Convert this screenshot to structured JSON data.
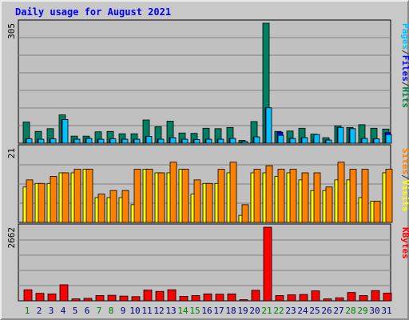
{
  "chart_data": {
    "type": "bar",
    "title": "Daily usage for August 2021",
    "categories": [
      "1",
      "2",
      "3",
      "4",
      "5",
      "6",
      "7",
      "8",
      "9",
      "10",
      "11",
      "12",
      "13",
      "14",
      "15",
      "16",
      "17",
      "18",
      "19",
      "20",
      "21",
      "22",
      "23",
      "24",
      "25",
      "26",
      "27",
      "28",
      "29",
      "30",
      "31"
    ],
    "weekend_days": [
      "1",
      "7",
      "8",
      "14",
      "15",
      "21",
      "22",
      "28",
      "29"
    ],
    "panels": [
      {
        "name": "hits-files-pages",
        "ymax_label": "305",
        "ylim": [
          0,
          305
        ],
        "legend": [
          {
            "text": "Pages",
            "color": "#00c0ff"
          },
          {
            "text": "/",
            "color": "#303030"
          },
          {
            "text": "Files",
            "color": "#0000ff"
          },
          {
            "text": "/",
            "color": "#303030"
          },
          {
            "text": "Hits",
            "color": "#008040"
          }
        ],
        "series": [
          {
            "name": "Hits",
            "color": "#008060",
            "values": [
              54,
              30,
              37,
              72,
              18,
              18,
              29,
              30,
              24,
              24,
              59,
              42,
              56,
              26,
              25,
              38,
              37,
              40,
              7,
              55,
              305,
              30,
              31,
              38,
              23,
              14,
              44,
              40,
              47,
              38,
              36
            ]
          },
          {
            "name": "Files",
            "color": "#0000ff",
            "values": [
              11,
              10,
              11,
              60,
              10,
              12,
              10,
              11,
              10,
              10,
              17,
              10,
              14,
              10,
              9,
              10,
              10,
              12,
              4,
              16,
              90,
              28,
              12,
              14,
              11,
              8,
              40,
              37,
              12,
              11,
              27
            ]
          },
          {
            "name": "Pages",
            "color": "#00c0ff",
            "values": [
              11,
              10,
              11,
              60,
              10,
              12,
              10,
              11,
              10,
              10,
              17,
              10,
              14,
              10,
              9,
              10,
              10,
              12,
              4,
              16,
              90,
              20,
              12,
              14,
              22,
              8,
              40,
              37,
              12,
              11,
              22
            ]
          }
        ]
      },
      {
        "name": "visits-sites",
        "ymax_label": "21",
        "ylim": [
          0,
          21
        ],
        "legend": [
          {
            "text": "Sites",
            "color": "#ff8000"
          },
          {
            "text": "/",
            "color": "#303030"
          },
          {
            "text": "Visits",
            "color": "#ffff00"
          }
        ],
        "series": [
          {
            "name": "Visits",
            "color": "#ffff00",
            "values": [
              10,
              11,
              11,
              14,
              14,
              15,
              7,
              7,
              7,
              5,
              15,
              14,
              14,
              15,
              8,
              11,
              11,
              14,
              2,
              14,
              14,
              13,
              14,
              12,
              9,
              9,
              12,
              12,
              7,
              6,
              14
            ]
          },
          {
            "name": "Sites",
            "color": "#ff8000",
            "values": [
              12,
              11,
              13,
              14,
              15,
              15,
              8,
              9,
              9,
              15,
              15,
              14,
              17,
              15,
              12,
              11,
              15,
              17,
              5,
              15,
              16,
              15,
              15,
              14,
              14,
              10,
              17,
              15,
              15,
              6,
              15
            ]
          }
        ]
      },
      {
        "name": "kbytes",
        "ymax_label": "2662",
        "ylim": [
          0,
          2662
        ],
        "legend": [
          {
            "text": "KBytes",
            "color": "#ff0000"
          }
        ],
        "series": [
          {
            "name": "KBytes",
            "color": "#ff0000",
            "values": [
              400,
              270,
              250,
              580,
              70,
              90,
              190,
              200,
              170,
              150,
              390,
              340,
              400,
              160,
              190,
              250,
              240,
              250,
              40,
              380,
              2662,
              190,
              220,
              230,
              360,
              70,
              110,
              300,
              190,
              370,
              280
            ]
          }
        ]
      }
    ]
  },
  "colors": {
    "background": "#c8c8c8",
    "plot": "#c0c0c0",
    "grid": "#808080",
    "weekday": "#000080",
    "weekend": "#008000",
    "title": "#0000ff"
  }
}
